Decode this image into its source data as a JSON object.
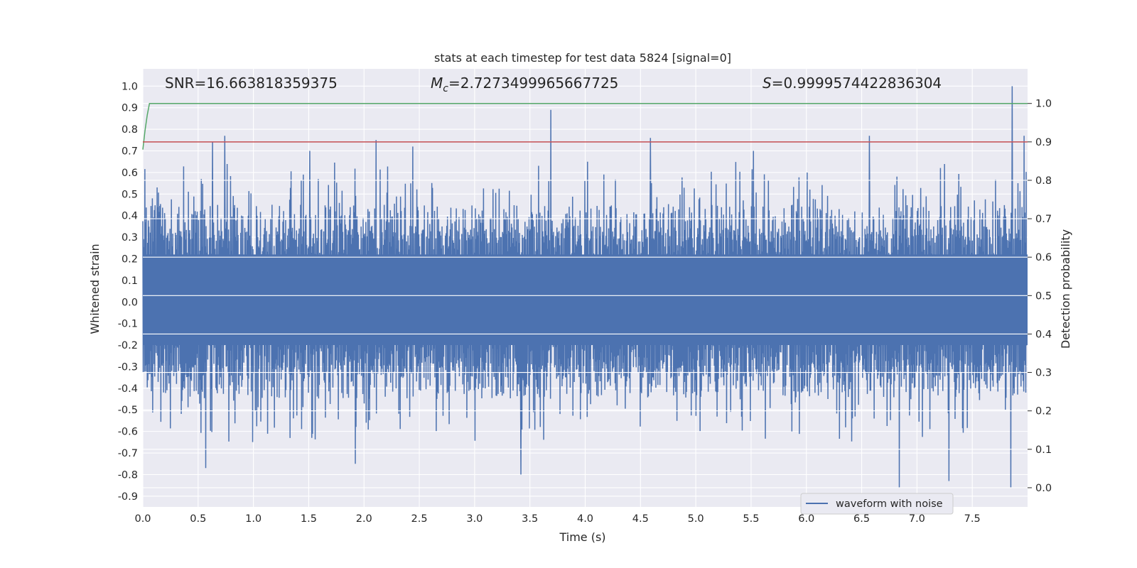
{
  "chart_data": {
    "type": "line",
    "title": "stats at each timestep for test data 5824 [signal=0]",
    "xlabel": "Time (s)",
    "ylabel_left": "Whitened strain",
    "ylabel_right": "Detection probability",
    "xlim": [
      0.0,
      8.0
    ],
    "ylim_left": [
      -0.95,
      1.08
    ],
    "ylim_right": [
      -0.05,
      1.09
    ],
    "x_ticks": [
      "0.0",
      "0.5",
      "1.0",
      "1.5",
      "2.0",
      "2.5",
      "3.0",
      "3.5",
      "4.0",
      "4.5",
      "5.0",
      "5.5",
      "6.0",
      "6.5",
      "7.0",
      "7.5"
    ],
    "y_ticks_left": [
      "-0.9",
      "-0.8",
      "-0.7",
      "-0.6",
      "-0.5",
      "-0.4",
      "-0.3",
      "-0.2",
      "-0.1",
      "0.0",
      "0.1",
      "0.2",
      "0.3",
      "0.4",
      "0.5",
      "0.6",
      "0.7",
      "0.8",
      "0.9",
      "1.0"
    ],
    "y_ticks_right": [
      "0.0",
      "0.1",
      "0.2",
      "0.3",
      "0.4",
      "0.5",
      "0.6",
      "0.7",
      "0.8",
      "0.9",
      "1.0"
    ],
    "grid": true,
    "legend_position": "lower-right",
    "series": [
      {
        "name": "waveform with noise",
        "axis": "left",
        "color": "#4c72b0",
        "description_values": "dense noisy strain; envelope mostly within -0.45..0.45",
        "peaks_high": [
          {
            "x": 0.63,
            "y": 0.74
          },
          {
            "x": 0.74,
            "y": 0.77
          },
          {
            "x": 1.51,
            "y": 0.7
          },
          {
            "x": 2.11,
            "y": 0.75
          },
          {
            "x": 2.44,
            "y": 0.72
          },
          {
            "x": 3.69,
            "y": 0.89
          },
          {
            "x": 4.59,
            "y": 0.76
          },
          {
            "x": 5.52,
            "y": 0.7
          },
          {
            "x": 6.57,
            "y": 0.77
          },
          {
            "x": 7.86,
            "y": 1.0
          },
          {
            "x": 7.97,
            "y": 0.77
          }
        ],
        "peaks_low": [
          {
            "x": 0.57,
            "y": -0.77
          },
          {
            "x": 1.92,
            "y": -0.75
          },
          {
            "x": 3.42,
            "y": -0.8
          },
          {
            "x": 6.84,
            "y": -0.86
          },
          {
            "x": 7.29,
            "y": -0.83
          },
          {
            "x": 7.85,
            "y": -0.86
          }
        ]
      },
      {
        "name": "",
        "axis": "right",
        "color": "#55a868",
        "x": [
          0.0,
          0.02,
          0.04,
          0.06,
          0.08,
          8.0
        ],
        "y": [
          0.88,
          0.93,
          0.97,
          1.0,
          1.0,
          1.0
        ]
      },
      {
        "name": "",
        "axis": "right",
        "color": "#c44e52",
        "x": [
          0.0,
          8.0
        ],
        "y": [
          0.9,
          0.9
        ]
      }
    ],
    "annotations": [
      {
        "text": "SNR=16.663818359375",
        "x": 0.2,
        "y_right": 1.01
      },
      {
        "text_main": "M",
        "text_sub": "c",
        "text_rest": "=2.7273499965667725",
        "x": 2.6,
        "y_right": 1.01
      },
      {
        "text_main": "S",
        "text_rest": "=0.9999574422836304",
        "x": 5.6,
        "y_right": 1.01
      }
    ]
  }
}
